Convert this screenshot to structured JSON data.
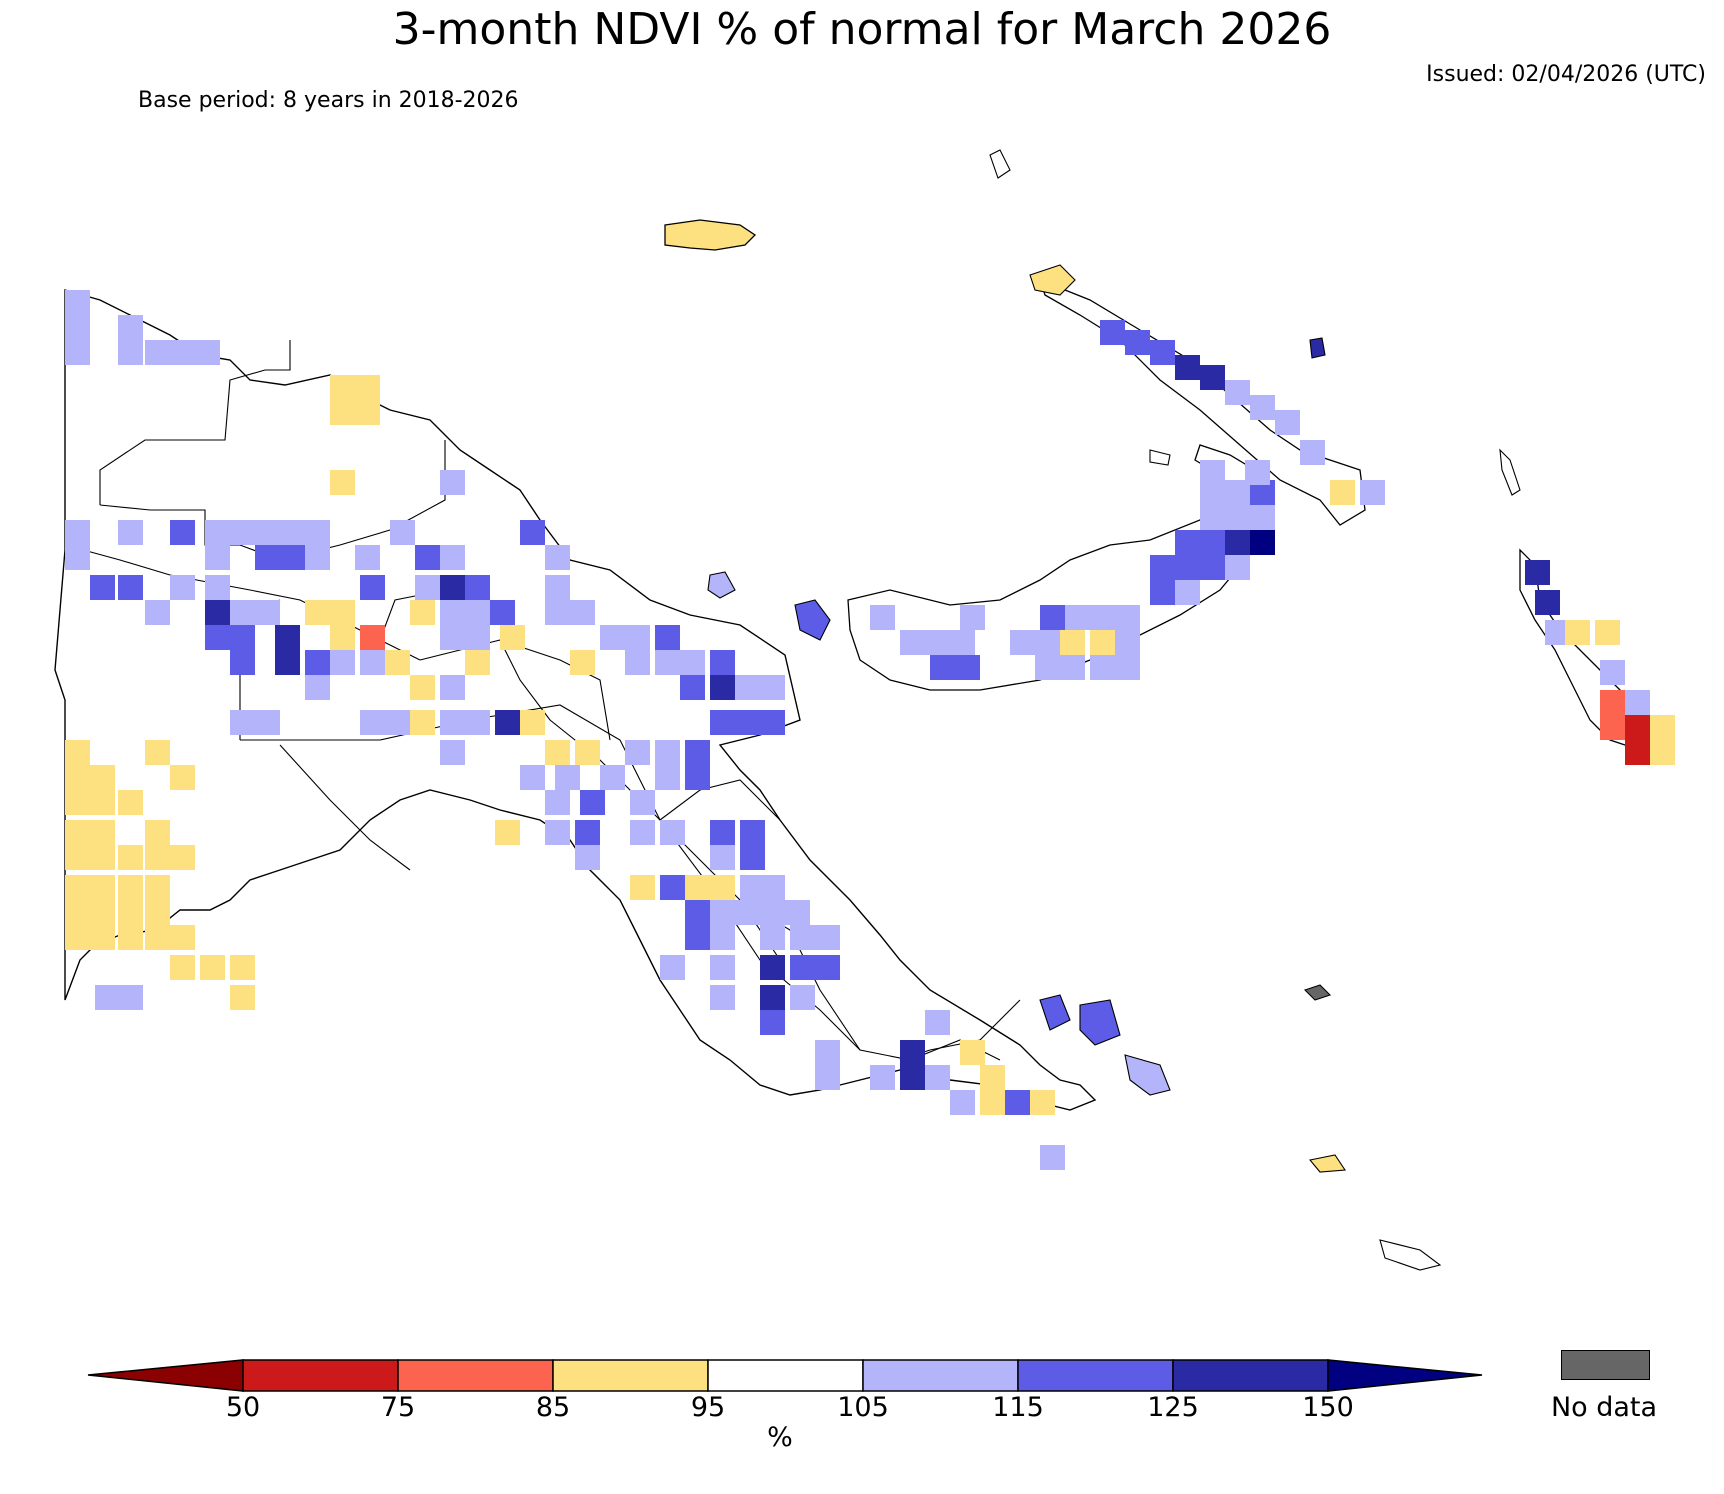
{
  "title": "3-month NDVI % of normal for March 2026",
  "issued": "Issued: 02/04/2026 (UTC)",
  "base_period": "Base period: 8 years in 2018-2026",
  "colorbar": {
    "ticks": [
      "50",
      "75",
      "85",
      "95",
      "105",
      "115",
      "125",
      "150"
    ],
    "unit": "%",
    "colors": {
      "below_50": "#8b0000",
      "50_75": "#cc1a1a",
      "75_85": "#fc6450",
      "85_95": "#fde07f",
      "95_105": "#ffffff",
      "105_115": "#b4b4fa",
      "115_125": "#5c5ce6",
      "125_150": "#2a2aa5",
      "above_150": "#000080"
    },
    "no_data_label": "No data",
    "no_data_color": "#666666"
  }
}
